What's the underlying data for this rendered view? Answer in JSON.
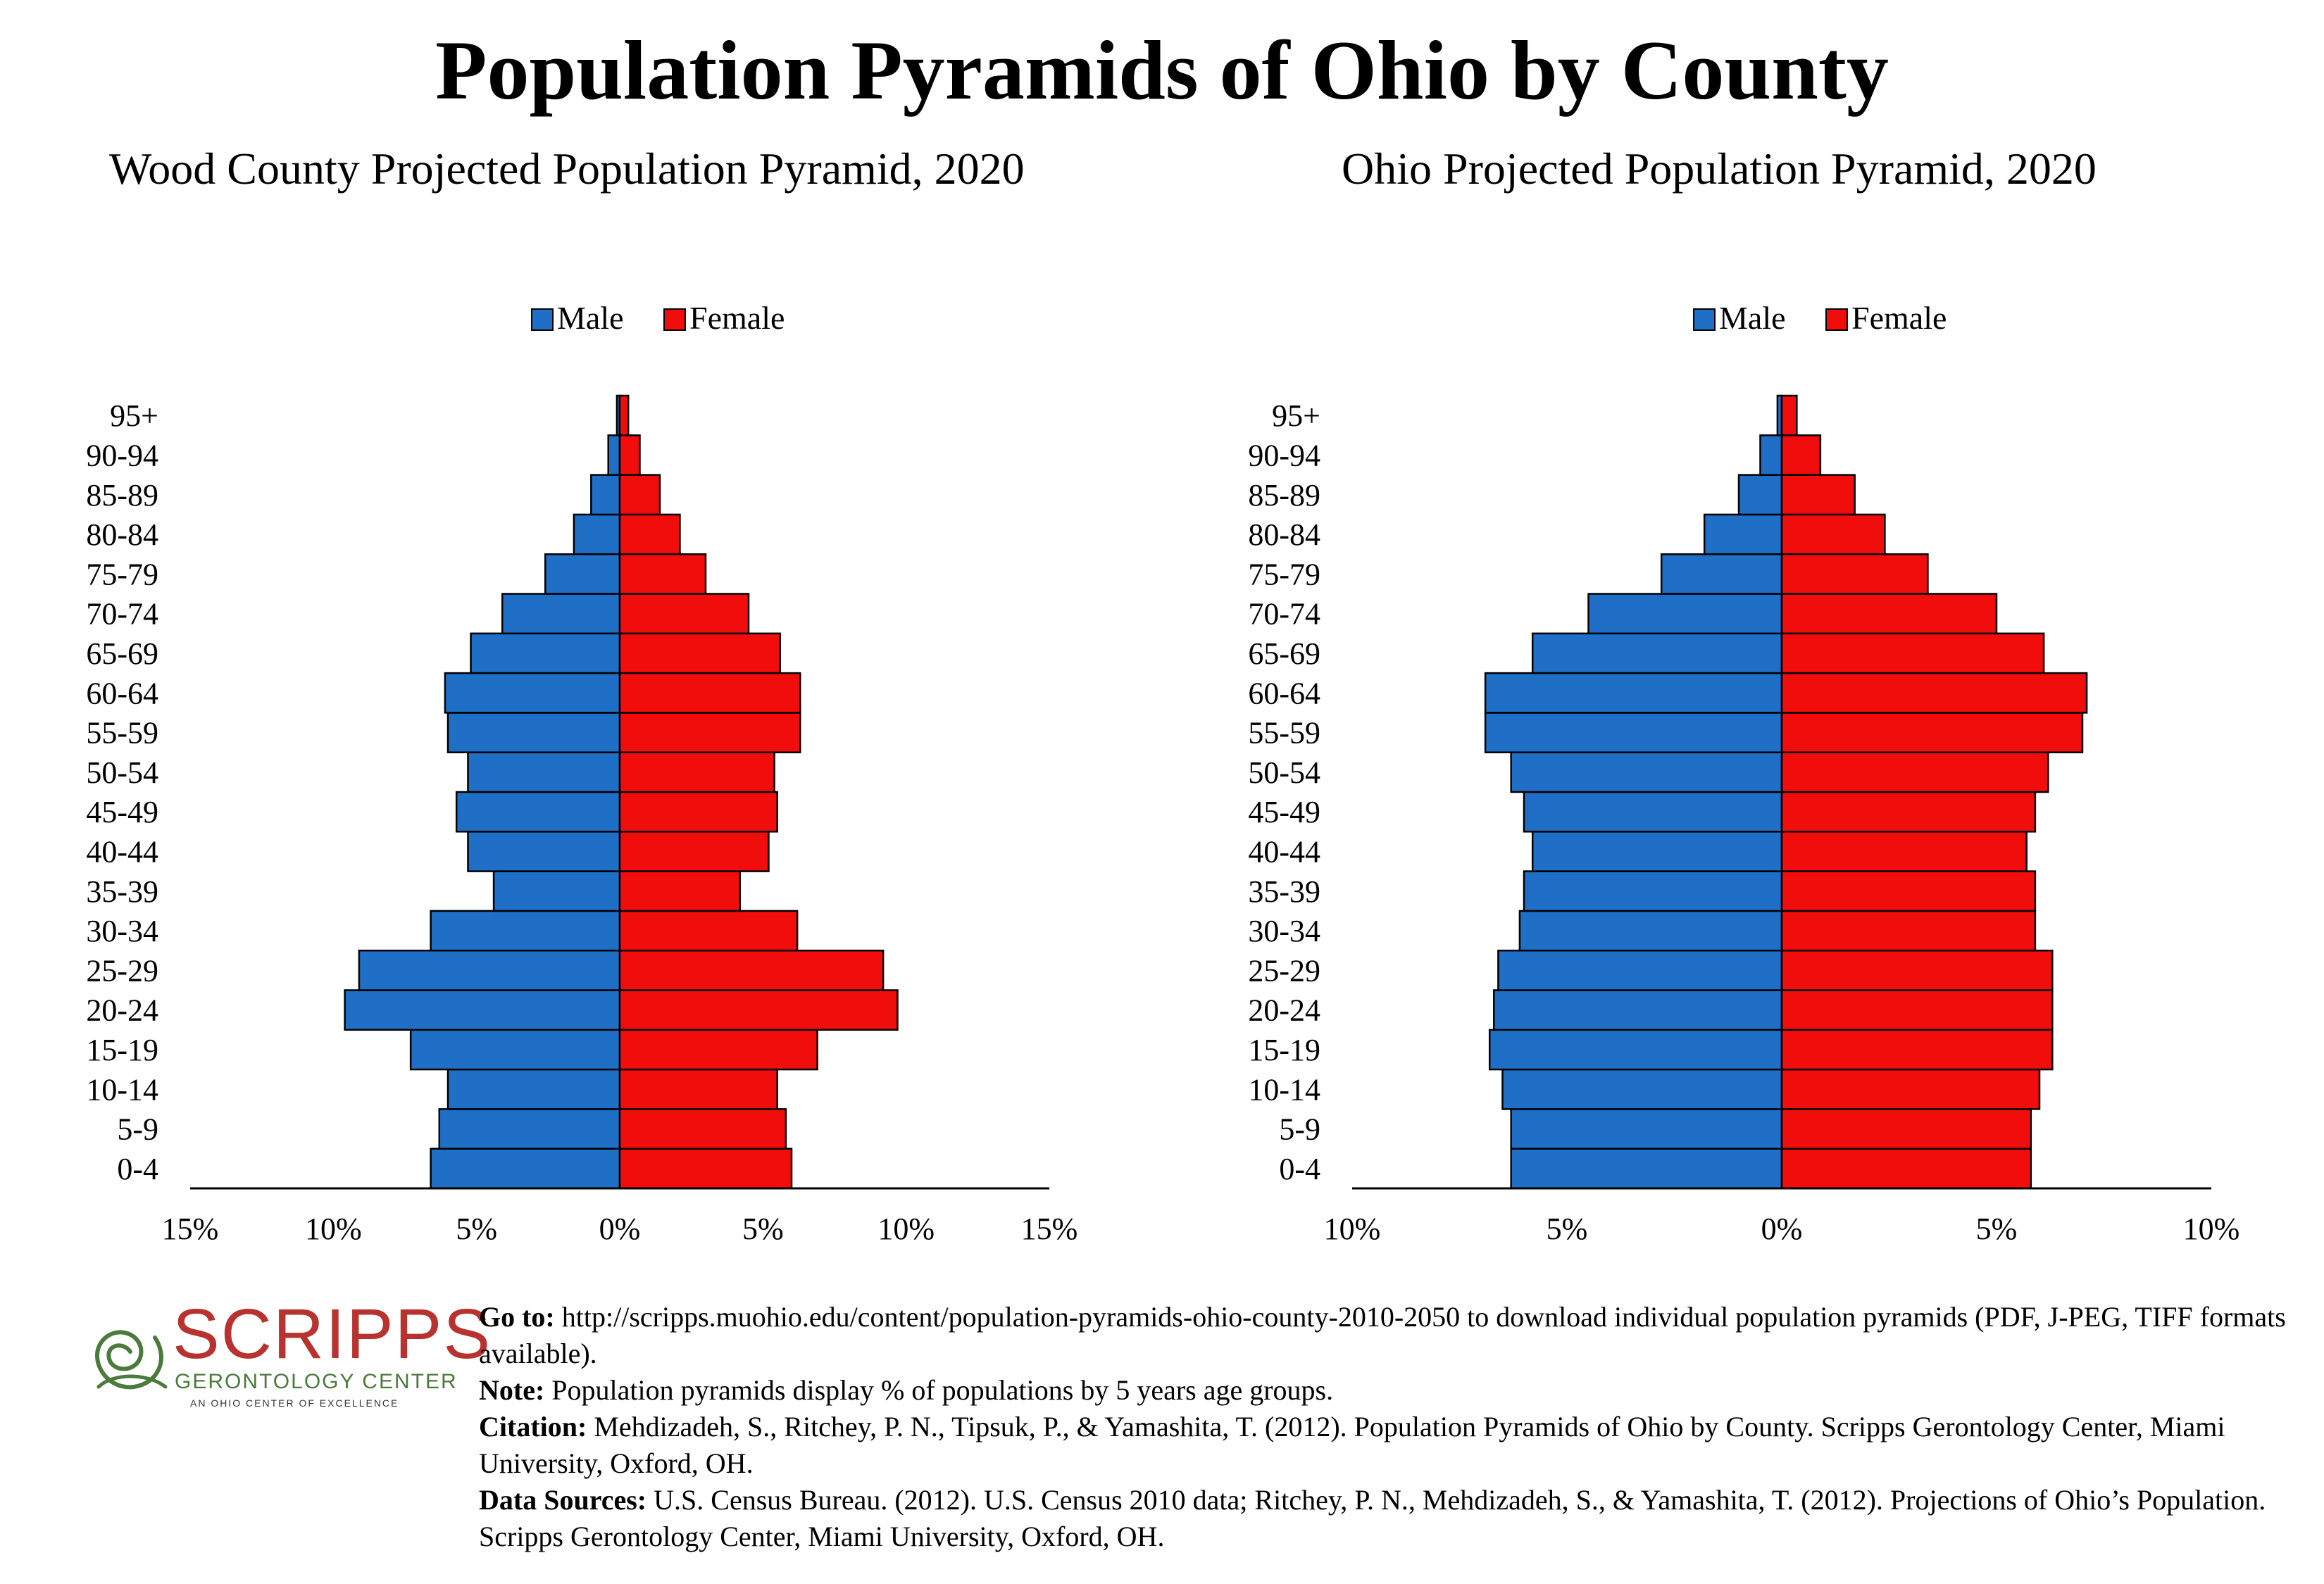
{
  "page": {
    "title": "Population Pyramids of Ohio by County"
  },
  "legend": {
    "male": "Male",
    "female": "Female"
  },
  "colors": {
    "male": "#1f6fc6",
    "female": "#f20d0d",
    "outline": "#000000",
    "logo_red": "#b8322f",
    "logo_green": "#4a7a3c"
  },
  "chart_data": [
    {
      "type": "bar",
      "title": "Wood County Projected Population Pyramid, 2020",
      "orientation": "horizontal-pyramid",
      "categories": [
        "0-4",
        "5-9",
        "10-14",
        "15-19",
        "20-24",
        "25-29",
        "30-34",
        "35-39",
        "40-44",
        "45-49",
        "50-54",
        "55-59",
        "60-64",
        "65-69",
        "70-74",
        "75-79",
        "80-84",
        "85-89",
        "90-94",
        "95+"
      ],
      "series": [
        {
          "name": "Male",
          "values": [
            6.6,
            6.3,
            6.0,
            7.3,
            9.6,
            9.1,
            6.6,
            4.4,
            5.3,
            5.7,
            5.3,
            6.0,
            6.1,
            5.2,
            4.1,
            2.6,
            1.6,
            1.0,
            0.4,
            0.1
          ]
        },
        {
          "name": "Female",
          "values": [
            6.0,
            5.8,
            5.5,
            6.9,
            9.7,
            9.2,
            6.2,
            4.2,
            5.2,
            5.5,
            5.4,
            6.3,
            6.3,
            5.6,
            4.5,
            3.0,
            2.1,
            1.4,
            0.7,
            0.3
          ]
        }
      ],
      "xlim": [
        -15,
        15
      ],
      "ticks": [
        "15%",
        "10%",
        "5%",
        "0%",
        "5%",
        "10%",
        "15%"
      ],
      "legend_position": "top-center"
    },
    {
      "type": "bar",
      "title": "Ohio Projected Population Pyramid, 2020",
      "orientation": "horizontal-pyramid",
      "categories": [
        "0-4",
        "5-9",
        "10-14",
        "15-19",
        "20-24",
        "25-29",
        "30-34",
        "35-39",
        "40-44",
        "45-49",
        "50-54",
        "55-59",
        "60-64",
        "65-69",
        "70-74",
        "75-79",
        "80-84",
        "85-89",
        "90-94",
        "95+"
      ],
      "series": [
        {
          "name": "Male",
          "values": [
            6.3,
            6.3,
            6.5,
            6.8,
            6.7,
            6.6,
            6.1,
            6.0,
            5.8,
            6.0,
            6.3,
            6.9,
            6.9,
            5.8,
            4.5,
            2.8,
            1.8,
            1.0,
            0.5,
            0.1
          ]
        },
        {
          "name": "Female",
          "values": [
            5.8,
            5.8,
            6.0,
            6.3,
            6.3,
            6.3,
            5.9,
            5.9,
            5.7,
            5.9,
            6.2,
            7.0,
            7.1,
            6.1,
            5.0,
            3.4,
            2.4,
            1.7,
            0.9,
            0.35
          ]
        }
      ],
      "xlim": [
        -10,
        10
      ],
      "ticks": [
        "10%",
        "5%",
        "0%",
        "5%",
        "10%"
      ],
      "legend_position": "top-center"
    }
  ],
  "footer": {
    "logo": {
      "word": "SCRIPPS",
      "sub": "GERONTOLOGY CENTER",
      "tag": "AN OHIO CENTER OF EXCELLENCE"
    },
    "goto_label": "Go to:",
    "goto_text": "http://scripps.muohio.edu/content/population-pyramids-ohio-county-2010-2050 to download individual population pyramids (PDF, J-PEG, TIFF formats available).",
    "note_label": "Note:",
    "note_text": "Population pyramids display % of populations by 5 years age groups.",
    "citation_label": "Citation:",
    "citation_text": "Mehdizadeh, S., Ritchey, P. N., Tipsuk, P., & Yamashita, T. (2012). Population Pyramids of Ohio by County. Scripps Gerontology Center, Miami University, Oxford, OH.",
    "sources_label": "Data Sources:",
    "sources_text": "U.S. Census Bureau. (2012). U.S. Census 2010 data; Ritchey, P. N., Mehdizadeh, S., & Yamashita, T. (2012). Projections of Ohio’s Population. Scripps Gerontology Center, Miami University, Oxford, OH."
  }
}
